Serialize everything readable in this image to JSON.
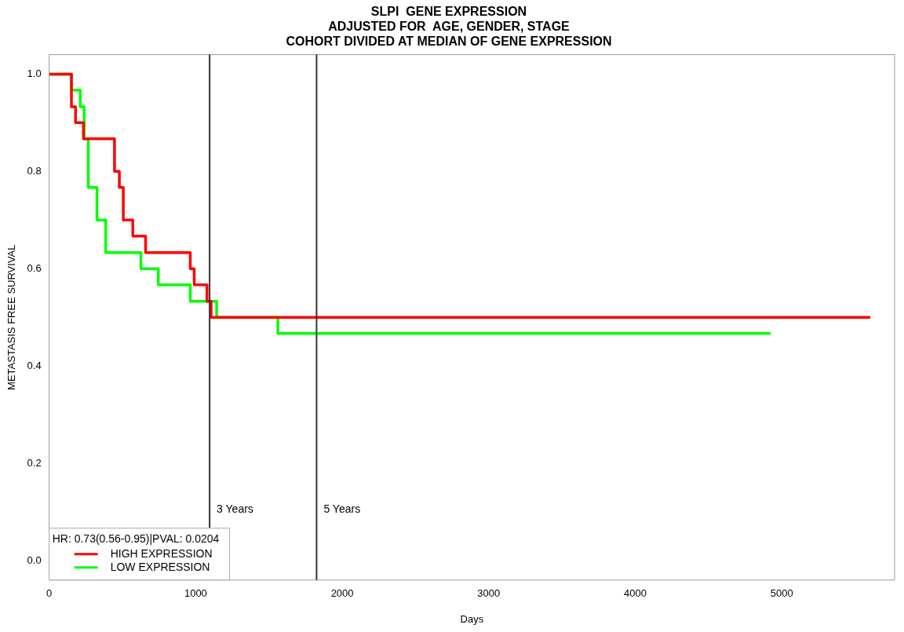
{
  "chart_data": {
    "type": "step",
    "title": "SLPI  GENE EXPRESSION",
    "subtitle": "ADJUSTED FOR  AGE, GENDER, STAGE\nCOHORT DIVIDED AT MEDIAN OF GENE EXPRESSION",
    "xlabel": "Days",
    "ylabel": "METASTASIS FREE SURVIVAL",
    "legend_title": "HR: 0.73(0.56-0.95)|PVAL: 0.0204",
    "legend": "bottom left",
    "grid": false,
    "marker": "none",
    "line_style": "solid",
    "xlim": [
      0,
      5770
    ],
    "ylim": [
      -0.04,
      1.04
    ],
    "xticks": [
      0,
      1000,
      2000,
      3000,
      4000,
      5000
    ],
    "yticks": [
      {
        "value": 0,
        "label": "0.0"
      },
      0.2,
      0.4,
      0.6,
      0.8,
      {
        "value": 1,
        "label": "1.0"
      }
    ],
    "series": [
      {
        "name": "HIGH EXPRESSION",
        "color": "#ff0000",
        "x": [
          0,
          152,
          180,
          234,
          446,
          479,
          506,
          571,
          658,
          963,
          990,
          1077,
          1105,
          5604
        ],
        "values": [
          1,
          0.933,
          0.9,
          0.867,
          0.8,
          0.767,
          0.7,
          0.667,
          0.633,
          0.6,
          0.567,
          0.533,
          0.5,
          0.5
        ]
      },
      {
        "name": "LOW EXPRESSION",
        "color": "#00ff00",
        "x": [
          0,
          152,
          212,
          239,
          267,
          326,
          386,
          626,
          745,
          963,
          1143,
          1561,
          4924
        ],
        "values": [
          1,
          0.967,
          0.933,
          0.867,
          0.767,
          0.7,
          0.633,
          0.6,
          0.567,
          0.533,
          0.5,
          0.467,
          0.467
        ]
      }
    ],
    "ref_lines": [
      {
        "axis": "x",
        "value": 1095,
        "label": "3 Years",
        "color": "#333333"
      },
      {
        "axis": "x",
        "value": 1825,
        "label": "5 Years",
        "color": "#333333"
      }
    ]
  }
}
